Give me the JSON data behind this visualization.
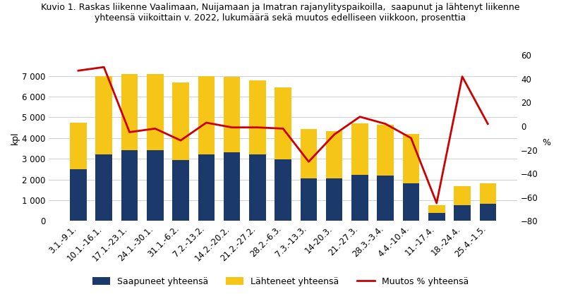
{
  "categories": [
    "3.1.-9.1.",
    "10.1.-16.1.",
    "17.1.-23.1.",
    "24.1.-30.1.",
    "31.1.-6.2.",
    "7.2.-13.2.",
    "14.2.-20.2.",
    "21.2.-27.2.",
    "28.2.-6.3.",
    "7.3.-13.3.",
    "14-20.3.",
    "21.-27.3.",
    "28.3.-3.4.",
    "4.4.-10.4.",
    "11.-17.4.",
    "18.-24.4.",
    "25.4.-1.5."
  ],
  "saapuneet": [
    2500,
    3200,
    3400,
    3400,
    2950,
    3200,
    3300,
    3200,
    2980,
    2050,
    2050,
    2220,
    2200,
    1800,
    380,
    770,
    810
  ],
  "lahteneet": [
    4750,
    7000,
    7100,
    7100,
    6700,
    7000,
    6950,
    6800,
    6450,
    4450,
    4350,
    4700,
    4650,
    4200,
    750,
    1680,
    1800
  ],
  "muutos": [
    47,
    50,
    -5,
    -2,
    -12,
    3,
    -1,
    -1,
    -2,
    -30,
    -7,
    8,
    2,
    -10,
    -65,
    42,
    2
  ],
  "bar_color_saapuneet": "#1b3a6b",
  "bar_color_lahteneet": "#f5c518",
  "line_color": "#cc0000",
  "title_line1": "Kuvio 1. Raskas liikenne Vaalimaan, Nuijamaan ja Imatran rajanylityspaikoilla,  saapunut ja lähtenyt liikenne",
  "title_line2": "yhteensä viikoittain v. 2022, lukumäärä sekä muutos edelliseen viikkoon, prosenttia",
  "ylabel_left": "kpl",
  "ylabel_right": "%",
  "ylim_left": [
    0,
    8000
  ],
  "ylim_right": [
    -80,
    60
  ],
  "yticks_left": [
    0,
    1000,
    2000,
    3000,
    4000,
    5000,
    6000,
    7000
  ],
  "yticks_right": [
    -80,
    -60,
    -40,
    -20,
    0,
    20,
    40,
    60
  ],
  "legend_labels": [
    "Saapuneet yhteensä",
    "Lähteneet yhteensä",
    "Muutos % yhteensä"
  ],
  "background_color": "#ffffff",
  "grid_color": "#d0d0d0",
  "title_fontsize": 9.0,
  "axis_label_fontsize": 9,
  "tick_fontsize": 8.5,
  "legend_fontsize": 9
}
